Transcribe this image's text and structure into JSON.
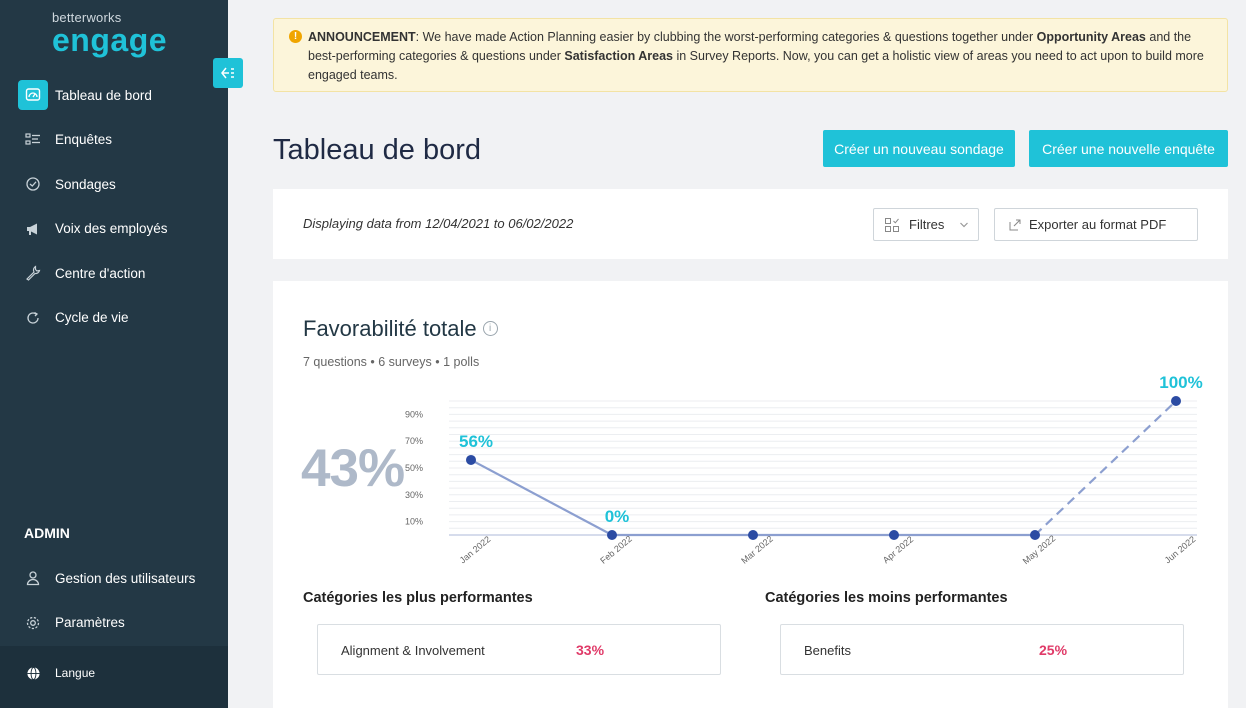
{
  "brand": {
    "small": "betterworks",
    "big": "engage"
  },
  "sidebar": {
    "items": [
      {
        "label": "Tableau de bord",
        "icon": "dashboard-icon",
        "active": true
      },
      {
        "label": "Enquêtes",
        "icon": "survey-list-icon",
        "active": false
      },
      {
        "label": "Sondages",
        "icon": "poll-check-icon",
        "active": false
      },
      {
        "label": "Voix des employés",
        "icon": "megaphone-icon",
        "active": false
      },
      {
        "label": "Centre d'action",
        "icon": "wrench-icon",
        "active": false
      },
      {
        "label": "Cycle de vie",
        "icon": "cycle-icon",
        "active": false
      }
    ],
    "admin_title": "ADMIN",
    "admin_items": [
      {
        "label": "Gestion des utilisateurs",
        "icon": "user-icon"
      },
      {
        "label": "Paramètres",
        "icon": "gear-icon"
      }
    ],
    "language_label": "Langue"
  },
  "announcement": {
    "prefix": "ANNOUNCEMENT",
    "text1": ": We have made Action Planning easier by clubbing the worst-performing categories & questions  together under ",
    "bold1": "Opportunity Areas",
    "text2": " and the best-performing  categories & questions under ",
    "bold2": "Satisfaction Areas",
    "text3": " in Survey Reports.  Now, you can get a holistic view of areas you need to act upon to build more engaged teams."
  },
  "header": {
    "title": "Tableau de bord",
    "btn_new_poll": "Créer un nouveau sondage",
    "btn_new_survey": "Créer une nouvelle enquête"
  },
  "filter_bar": {
    "date_range": "Displaying data from 12/04/2021 to 06/02/2022",
    "filters_label": "Filtres",
    "export_label": "Exporter au format PDF"
  },
  "favorability": {
    "title": "Favorabilité totale",
    "subtitle": "7 questions • 6 surveys • 1 polls",
    "total": "43%"
  },
  "chart_data": {
    "type": "line",
    "categories": [
      "Jan 2022",
      "Feb 2022",
      "Mar 2022",
      "Apr 2022",
      "May 2022",
      "Jun 2022"
    ],
    "values": [
      56,
      0,
      0,
      0,
      0,
      100
    ],
    "data_labels": [
      "56%",
      "0%",
      "",
      "",
      "",
      "100%"
    ],
    "y_ticks": [
      "10%",
      "30%",
      "50%",
      "70%",
      "90%"
    ],
    "ylim": [
      0,
      100
    ],
    "dashed_last_segment": true,
    "line_color": "#8c9fd0",
    "point_color": "#2b4ba3",
    "label_color": "#1fc2d8"
  },
  "categories": {
    "top_title": "Catégories les plus performantes",
    "top": [
      {
        "name": "Alignment & Involvement",
        "value": "33%"
      }
    ],
    "bottom_title": "Catégories les moins performantes",
    "bottom": [
      {
        "name": "Benefits",
        "value": "25%"
      }
    ]
  }
}
